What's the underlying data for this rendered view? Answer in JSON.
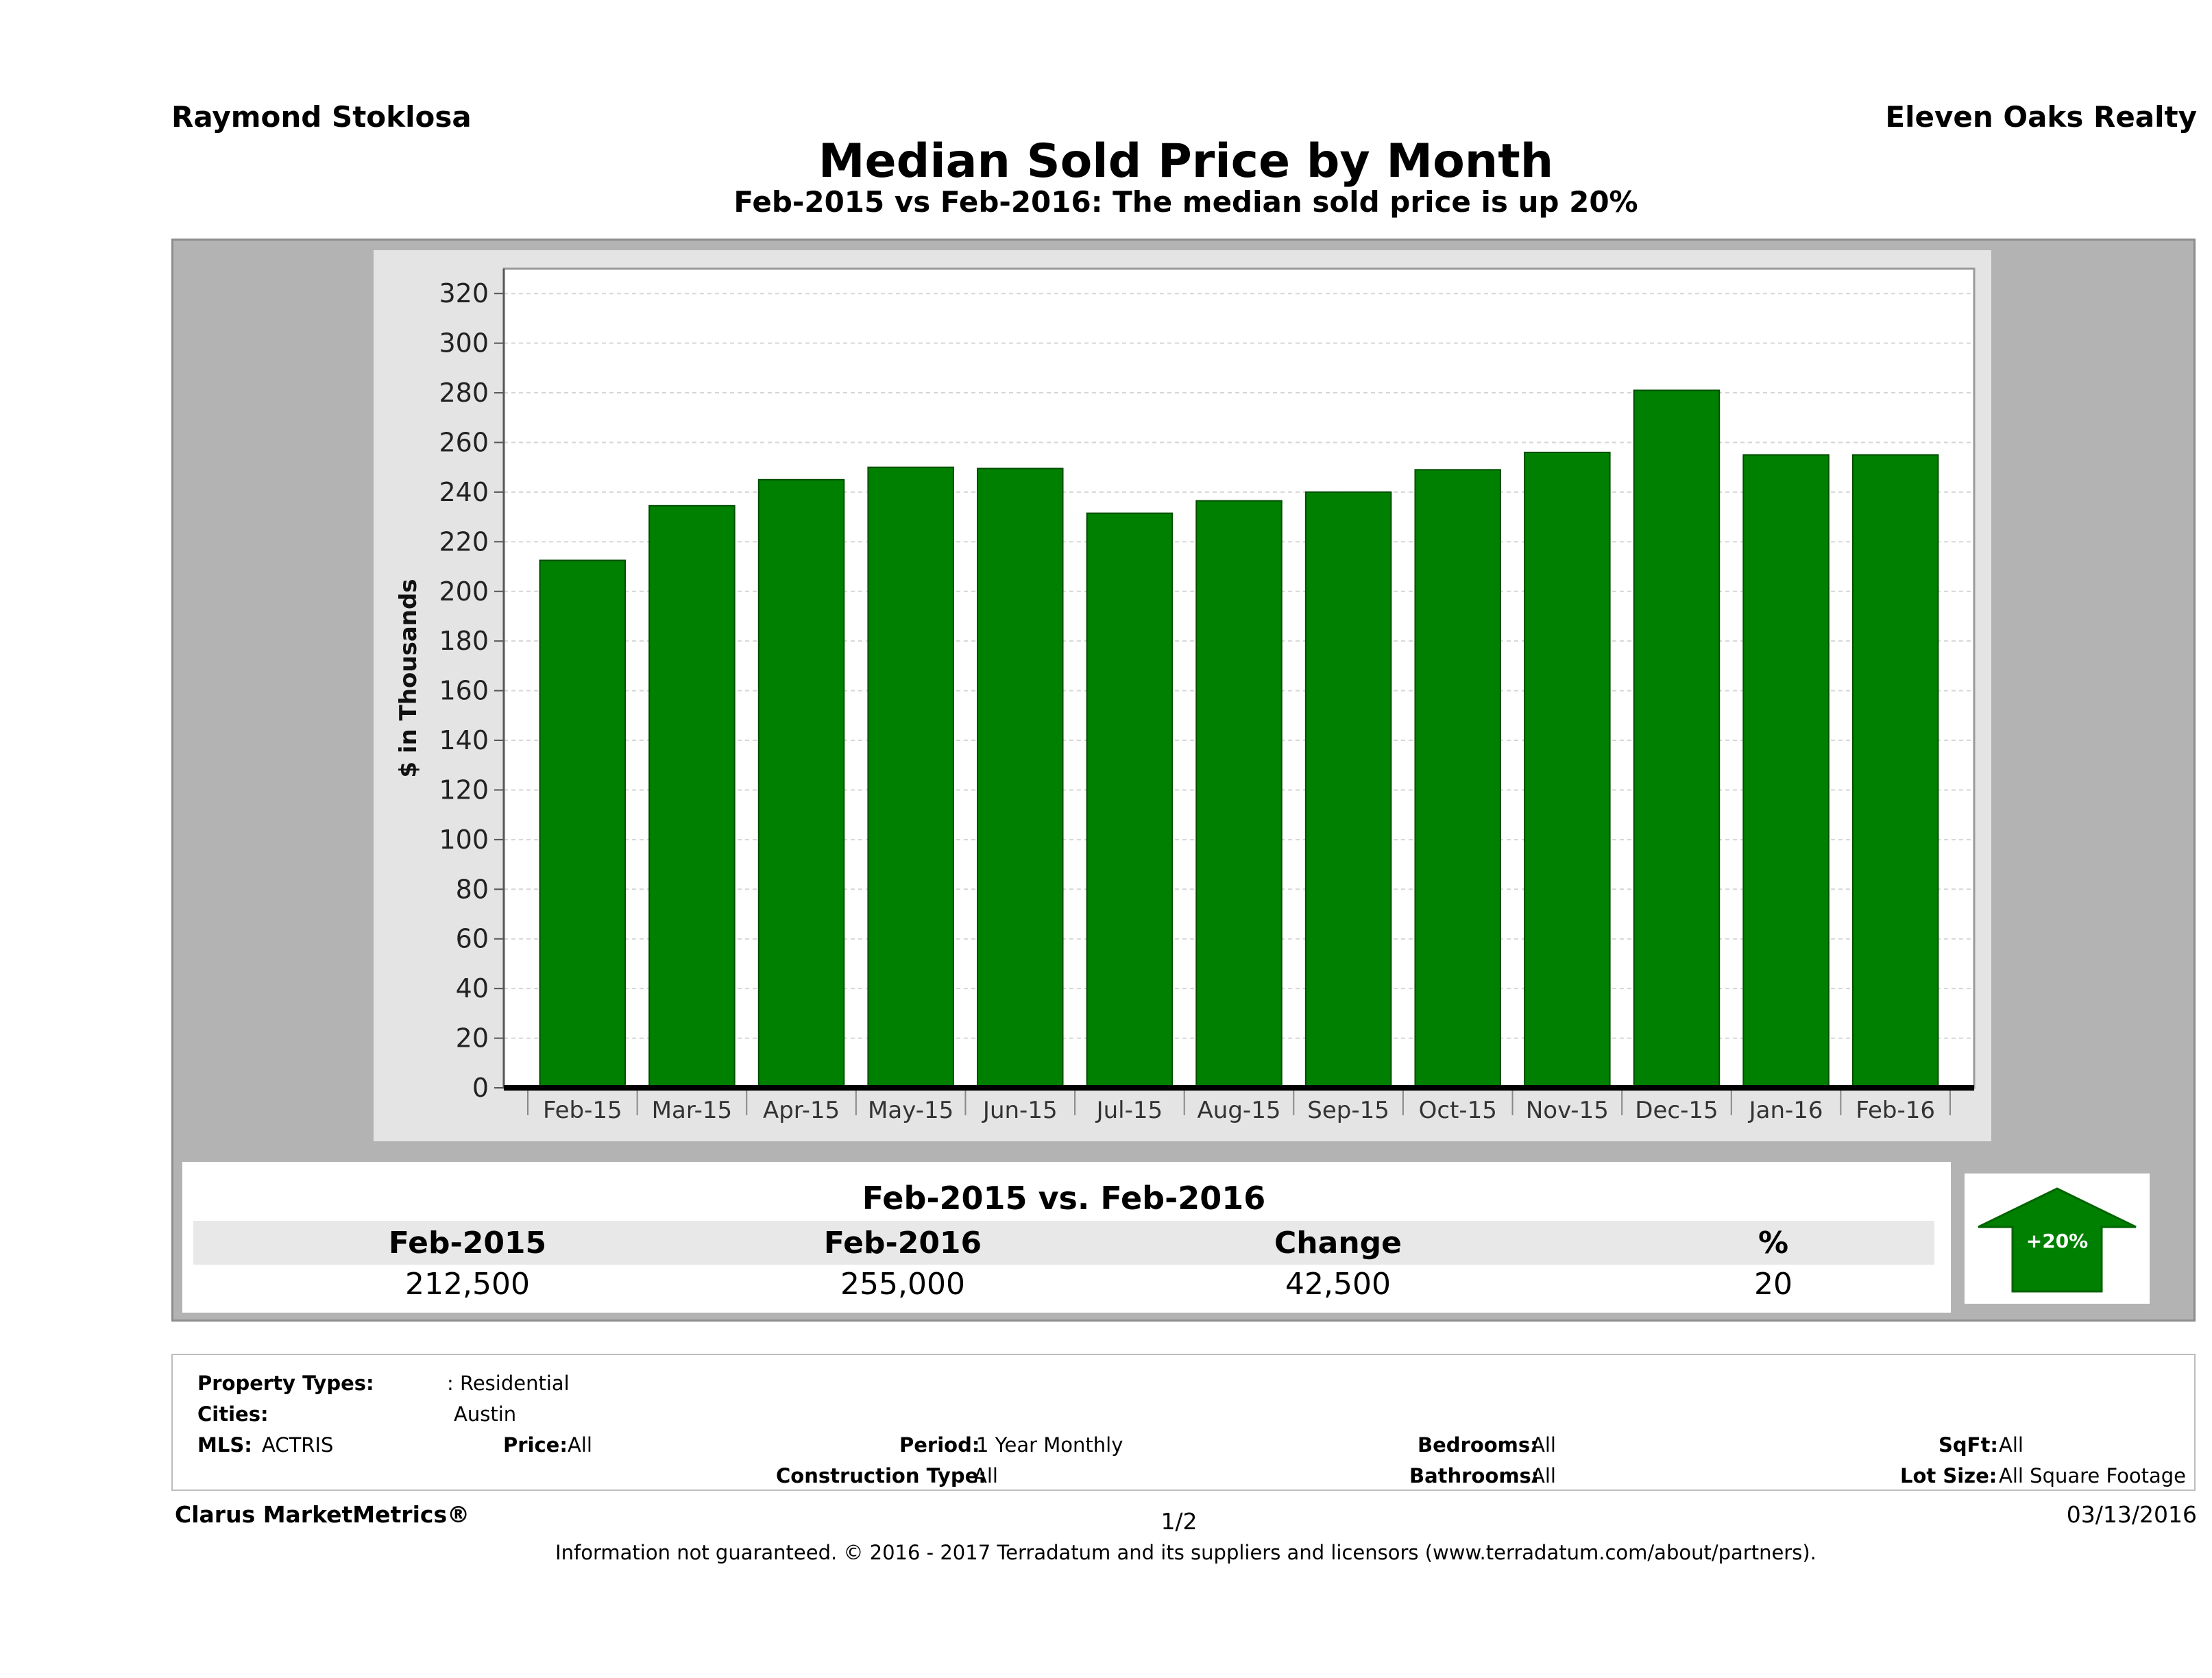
{
  "header": {
    "agent": "Raymond Stoklosa",
    "company": "Eleven Oaks Realty",
    "title": "Median Sold Price by Month",
    "subtitle": "Feb-2015 vs Feb-2016: The median sold price is up 20%"
  },
  "chart_data": {
    "type": "bar",
    "categories": [
      "Feb-15",
      "Mar-15",
      "Apr-15",
      "May-15",
      "Jun-15",
      "Jul-15",
      "Aug-15",
      "Sep-15",
      "Oct-15",
      "Nov-15",
      "Dec-15",
      "Jan-16",
      "Feb-16"
    ],
    "values": [
      212.5,
      234.5,
      245,
      250,
      249.5,
      231.5,
      236.5,
      240,
      249,
      256,
      281,
      255,
      255
    ],
    "ylabel": "$ in Thousands",
    "ylim": [
      0,
      330
    ],
    "yticks": [
      0,
      20,
      40,
      60,
      80,
      100,
      120,
      140,
      160,
      180,
      200,
      220,
      240,
      260,
      280,
      300,
      320
    ],
    "grid": true,
    "bar_color": "#008000"
  },
  "comparison": {
    "title": "Feb-2015 vs. Feb-2016",
    "headers": [
      "Feb-2015",
      "Feb-2016",
      "Change",
      "%"
    ],
    "values": [
      "212,500",
      "255,000",
      "42,500",
      "20"
    ],
    "badge": "+20%",
    "badge_color": "#008000"
  },
  "details": {
    "property_types_label": "Property Types:",
    "property_types_value": ": Residential",
    "cities_label": "Cities:",
    "cities_value": "Austin",
    "mls_label": "MLS:",
    "mls_value": "ACTRIS",
    "price_label": "Price:",
    "price_value": "All",
    "period_label": "Period:",
    "period_value": "1 Year Monthly",
    "construction_label": "Construction Type:",
    "construction_value": "All",
    "bedrooms_label": "Bedrooms:",
    "bedrooms_value": "All",
    "bathrooms_label": "Bathrooms:",
    "bathrooms_value": "All",
    "sqft_label": "SqFt:",
    "sqft_value": "All",
    "lot_label": "Lot Size:",
    "lot_value": "All Square Footage"
  },
  "footer": {
    "brand": "Clarus MarketMetrics®",
    "page": "1/2",
    "date": "03/13/2016",
    "disclaimer": "Information not guaranteed. © 2016 - 2017 Terradatum and its suppliers and licensors (www.terradatum.com/about/partners)."
  }
}
